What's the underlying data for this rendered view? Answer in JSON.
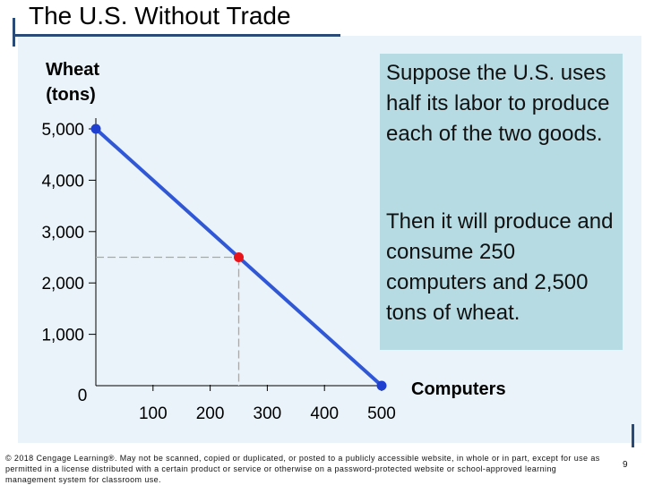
{
  "page": {
    "title": "The U.S. Without Trade",
    "page_number": "9",
    "copyright": "© 2018 Cengage Learning®. May not be scanned, copied or duplicated, or posted to a publicly accessible website, in whole or in part, except for use as permitted in a license distributed with a certain product or service or otherwise on a password-protected website or school-approved learning management system for classroom use."
  },
  "callout": {
    "text_1": "Suppose the U.S. uses half its labor to produce each of the two goods.",
    "text_2": "Then it will produce and consume 250 computers and 2,500 tons of wheat."
  },
  "colors": {
    "line": "#2f57d6",
    "endpoint": "#1f3fd0",
    "highlight": "#e8141c",
    "guide": "#a9a9a9"
  },
  "chart_data": {
    "type": "line",
    "xlabel": "Computers",
    "ylabel": "Wheat (tons)",
    "xlim": [
      0,
      500
    ],
    "ylim": [
      0,
      5000
    ],
    "x_ticks": [
      0,
      100,
      200,
      300,
      400,
      500
    ],
    "x_tick_labels": [
      "0",
      "100",
      "200",
      "300",
      "400",
      "500"
    ],
    "y_ticks": [
      0,
      1000,
      2000,
      3000,
      4000,
      5000
    ],
    "y_tick_labels": [
      "0",
      "1,000",
      "2,000",
      "3,000",
      "4,000",
      "5,000"
    ],
    "series": [
      {
        "x": [
          0,
          500
        ],
        "y": [
          5000,
          0
        ]
      }
    ],
    "endpoints": [
      {
        "x": 0,
        "y": 5000
      },
      {
        "x": 500,
        "y": 0
      }
    ],
    "highlight": {
      "x": 250,
      "y": 2500
    }
  }
}
